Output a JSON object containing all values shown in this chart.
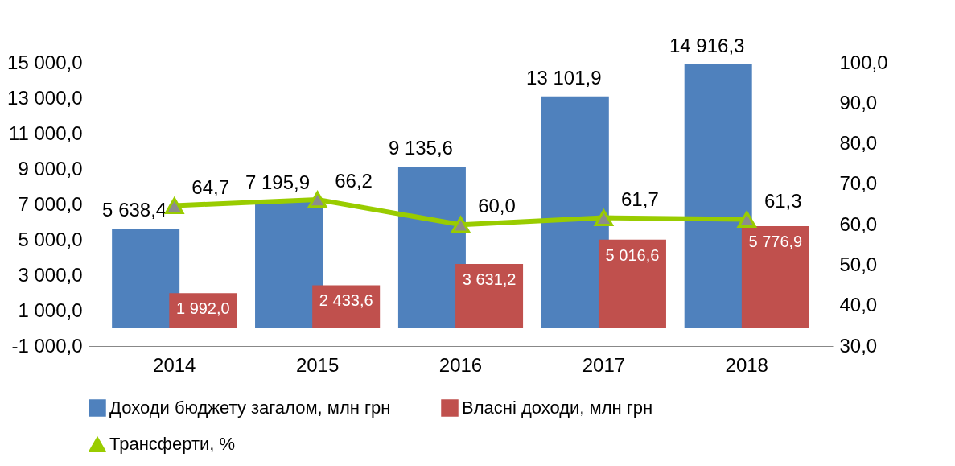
{
  "chart_data": {
    "type": "bar",
    "categories": [
      "2014",
      "2015",
      "2016",
      "2017",
      "2018"
    ],
    "series": [
      {
        "name": "Доходи бюджету загалом, млн грн",
        "color": "#4f81bd",
        "values": [
          5638.4,
          7195.9,
          9135.6,
          13101.9,
          14916.3
        ],
        "value_labels": [
          "5 638,4",
          "7 195,9",
          "9 135,6",
          "13 101,9",
          "14 916,3"
        ]
      },
      {
        "name": "Власні доходи, млн грн",
        "color": "#c0504d",
        "values": [
          1992.0,
          2433.6,
          3631.2,
          5016.6,
          5776.9
        ],
        "value_labels": [
          "1 992,0",
          "2 433,6",
          "3 631,2",
          "5 016,6",
          "5 776,9"
        ]
      },
      {
        "name": "Трансферти, %",
        "type": "line",
        "axis": "y2",
        "color": "#99cc00",
        "marker": "triangle",
        "values": [
          64.7,
          66.2,
          60.0,
          61.7,
          61.3
        ],
        "value_labels": [
          "64,7",
          "66,2",
          "60,0",
          "61,7",
          "61,3"
        ]
      }
    ],
    "ylim": [
      -1000,
      15000
    ],
    "yticks": [
      {
        "value": -1000,
        "label": "-1 000,0"
      },
      {
        "value": 1000,
        "label": "1 000,0"
      },
      {
        "value": 3000,
        "label": "3 000,0"
      },
      {
        "value": 5000,
        "label": "5 000,0"
      },
      {
        "value": 7000,
        "label": "7 000,0"
      },
      {
        "value": 9000,
        "label": "9 000,0"
      },
      {
        "value": 11000,
        "label": "11 000,0"
      },
      {
        "value": 13000,
        "label": "13 000,0"
      },
      {
        "value": 15000,
        "label": "15 000,0"
      }
    ],
    "y2lim": [
      30,
      100
    ],
    "y2ticks": [
      {
        "value": 30,
        "label": "30,0"
      },
      {
        "value": 40,
        "label": "40,0"
      },
      {
        "value": 50,
        "label": "50,0"
      },
      {
        "value": 60,
        "label": "60,0"
      },
      {
        "value": 70,
        "label": "70,0"
      },
      {
        "value": 80,
        "label": "80,0"
      },
      {
        "value": 90,
        "label": "90,0"
      },
      {
        "value": 100,
        "label": "100,0"
      }
    ],
    "grid": false,
    "legend": "bottom"
  }
}
